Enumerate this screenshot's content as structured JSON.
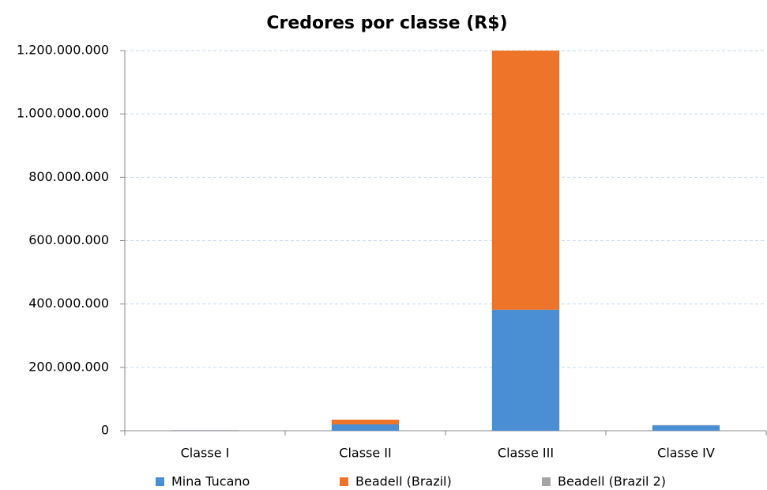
{
  "chart_data": {
    "type": "bar",
    "stacked": true,
    "title": "Credores por classe (R$)",
    "categories": [
      "Classe I",
      "Classe II",
      "Classe III",
      "Classe IV"
    ],
    "series": [
      {
        "name": "Mina Tucano",
        "color": "#4a8fd4",
        "values": [
          1000000,
          20000000,
          382000000,
          17000000
        ]
      },
      {
        "name": "Beadell (Brazil)",
        "color": "#ed7428",
        "values": [
          500000,
          15000000,
          818000000,
          0
        ]
      },
      {
        "name": "Beadell (Brazil 2)",
        "color": "#a5a5a5",
        "values": [
          300000,
          0,
          0,
          1000000
        ]
      }
    ],
    "ylim": [
      0,
      1200000000
    ],
    "yticks": [
      0,
      {
        "value": 200000000,
        "label": "200.000.000"
      },
      {
        "value": 400000000,
        "label": "400.000.000"
      },
      {
        "value": 600000000,
        "label": "600.000.000"
      },
      {
        "value": 800000000,
        "label": "800.000.000"
      },
      {
        "value": 1000000000,
        "label": "1.000.000.000"
      },
      {
        "value": 1200000000,
        "label": "1.200.000.000"
      }
    ],
    "grid": true,
    "legend": "bottom"
  }
}
